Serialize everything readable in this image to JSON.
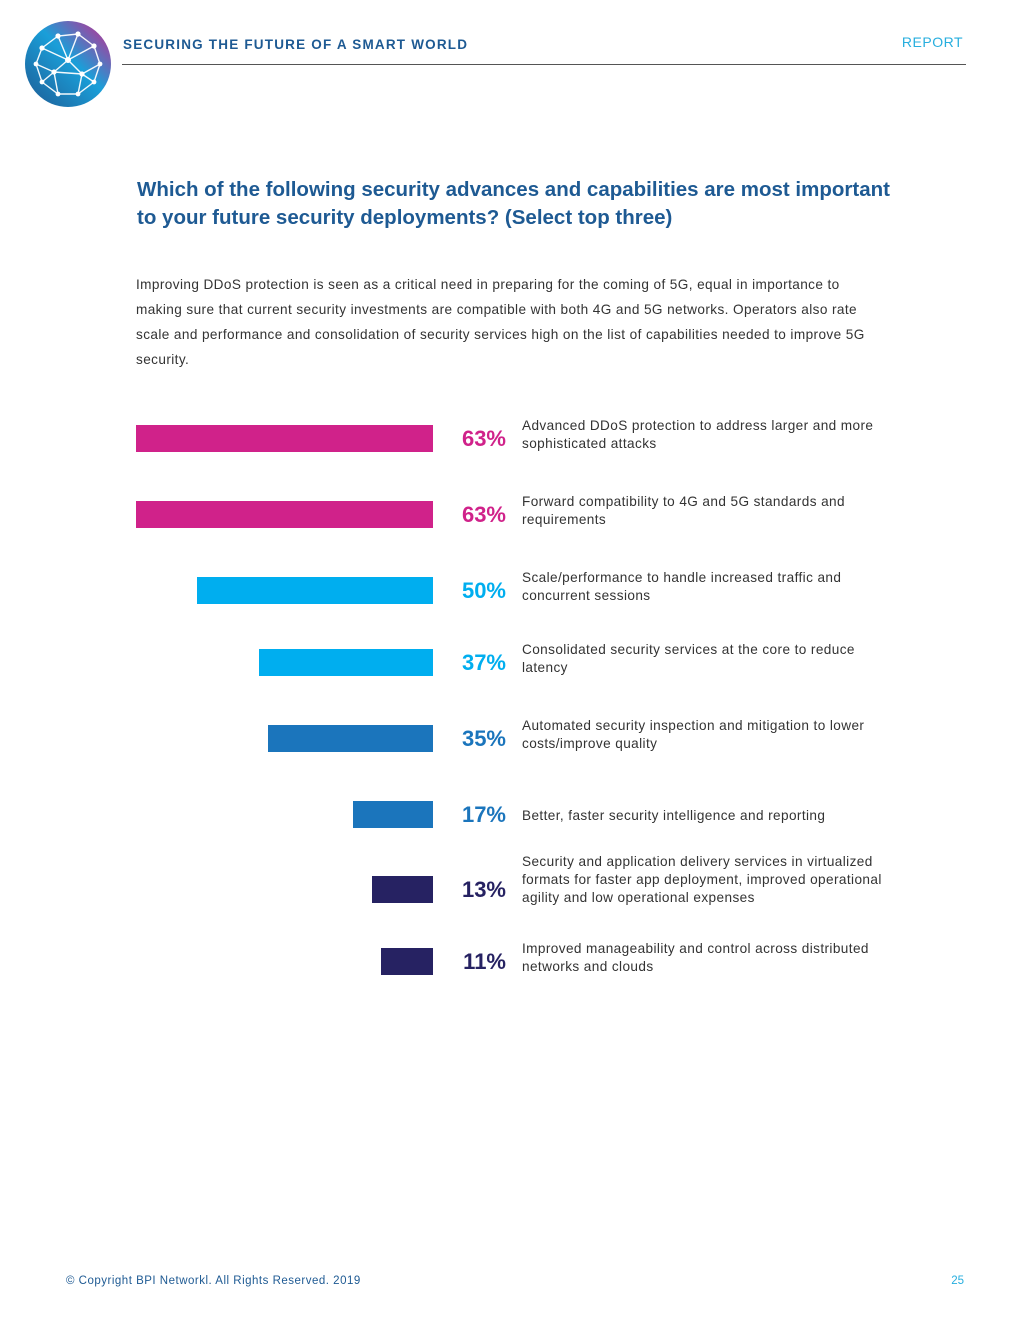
{
  "header": {
    "title": "SECURING THE FUTURE OF A SMART WORLD",
    "section": "REPORT"
  },
  "content": {
    "question": "Which of the following security advances and capabilities are most important to your future security deployments? (Select top three)",
    "intro": "Improving DDoS protection is seen as a critical need in preparing for the coming of 5G, equal in importance to making sure that current security investments are compatible with both 4G and 5G networks. Operators also rate scale and performance and consolidation of security services high on the list of capabilities needed to improve 5G security."
  },
  "chart_data": {
    "type": "bar",
    "orientation": "horizontal",
    "title": "",
    "xlabel": "",
    "ylabel": "",
    "xlim": [
      0,
      63
    ],
    "categories": [
      "Advanced DDoS protection to address larger and more sophisticated attacks",
      "Forward compatibility to 4G and 5G standards and requirements",
      "Scale/performance to handle increased traffic and concurrent sessions",
      "Consolidated security services at the core to reduce latency",
      "Automated security inspection and mitigation to lower costs/improve quality",
      "Better, faster security intelligence and reporting",
      "Security and application delivery services in virtualized formats for faster app deployment, improved operational agility and low operational expenses",
      "Improved manageability and control across distributed networks and clouds"
    ],
    "values": [
      63,
      63,
      50,
      37,
      35,
      17,
      13,
      11
    ],
    "value_labels": [
      "63%",
      "63%",
      "50%",
      "37%",
      "35%",
      "17%",
      "13%",
      "11%"
    ],
    "colors": [
      "#d0228a",
      "#d0228a",
      "#00aeef",
      "#00aeef",
      "#1b75bc",
      "#1b75bc",
      "#262262",
      "#262262"
    ]
  },
  "footer": {
    "copyright": "© Copyright BPI Networkl. All Rights Reserved. 2019",
    "page_number": "25"
  }
}
